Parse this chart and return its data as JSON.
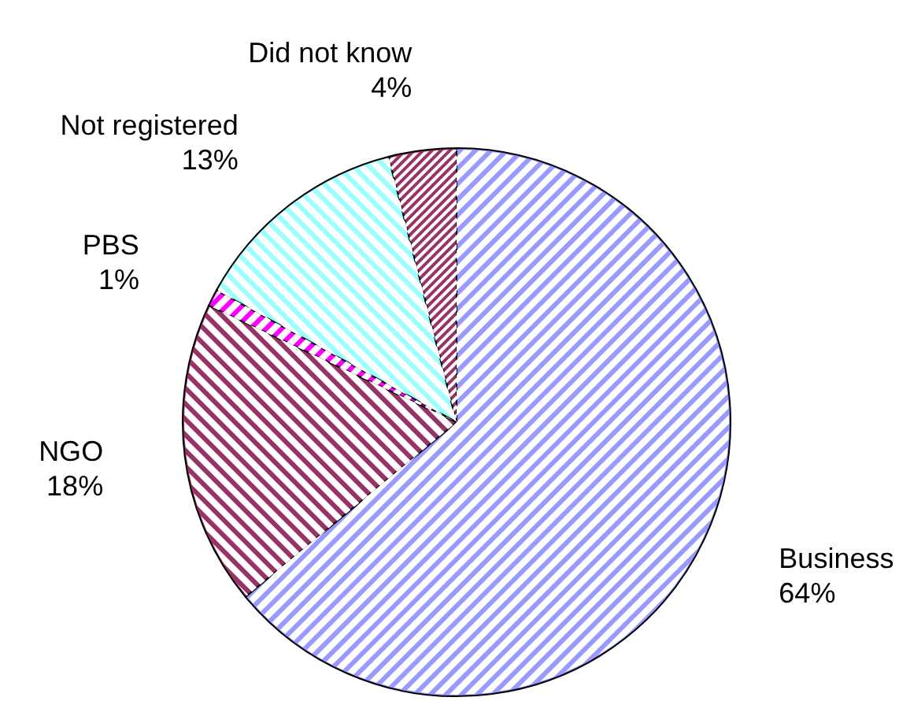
{
  "chart_data": {
    "type": "pie",
    "categories": [
      "Business",
      "NGO",
      "PBS",
      "Not registered",
      "Did not know"
    ],
    "values": [
      64,
      18,
      1,
      13,
      4
    ],
    "colors": [
      "#9999ff",
      "#993366",
      "#ff00ff",
      "#99ffff",
      "#993366"
    ],
    "value_labels": [
      "64%",
      "18%",
      "1%",
      "13%",
      "4%"
    ]
  }
}
